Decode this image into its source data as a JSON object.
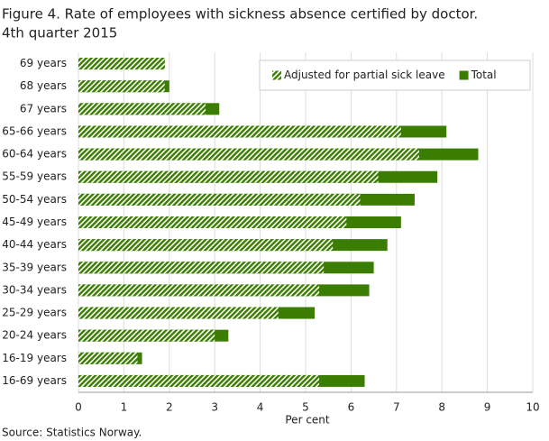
{
  "chart_data": {
    "type": "bar",
    "orientation": "horizontal",
    "title": "Figure 4. Rate of employees with sickness absence certified by doctor.",
    "subtitle": "4th quarter 2015",
    "categories": [
      "69 years",
      "68 years",
      "67 years",
      "65-66 years",
      "60-64 years",
      "55-59 years",
      "50-54 years",
      "45-49 years",
      "40-44 years",
      "35-39 years",
      "30-34 years",
      "25-29 years",
      "20-24 years",
      "16-19 years",
      "16-69 years"
    ],
    "series": [
      {
        "name": "Total",
        "color": "#3a7d00",
        "pattern": "solid",
        "values": [
          1.9,
          2.0,
          3.1,
          8.1,
          8.8,
          7.9,
          7.4,
          7.1,
          6.8,
          6.5,
          6.4,
          5.2,
          3.3,
          1.4,
          6.3
        ]
      },
      {
        "name": "Adjusted for partial sick leave",
        "color": "#3a7d00",
        "pattern": "hatch",
        "values": [
          1.9,
          1.9,
          2.8,
          7.1,
          7.5,
          6.6,
          6.2,
          5.9,
          5.6,
          5.4,
          5.3,
          4.4,
          3.0,
          1.3,
          5.3
        ]
      }
    ],
    "xlabel": "Per cent",
    "xlim": [
      0,
      10
    ],
    "xticks": [
      0,
      1,
      2,
      3,
      4,
      5,
      6,
      7,
      8,
      9,
      10
    ],
    "grid": true,
    "legend": "top-right",
    "source": "Source: Statistics Norway."
  }
}
